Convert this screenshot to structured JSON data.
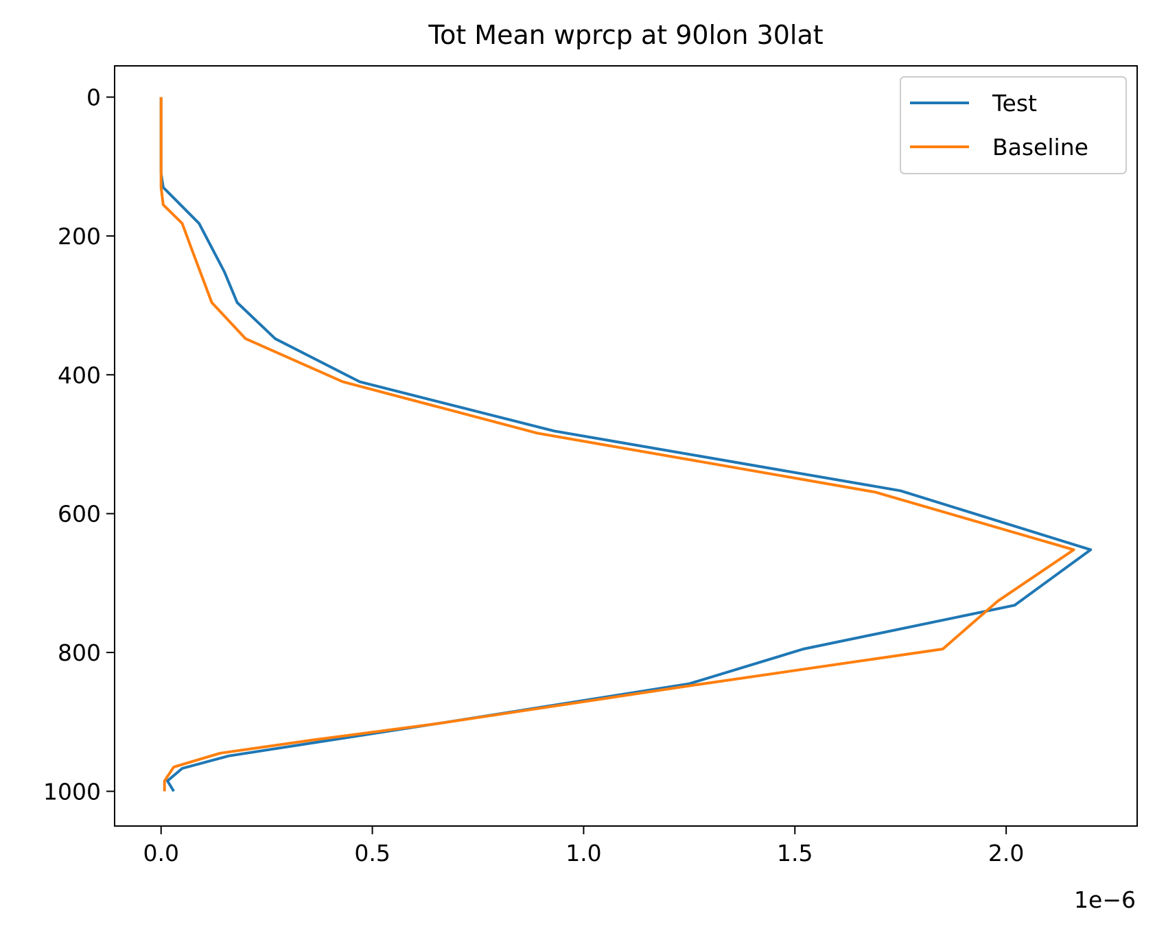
{
  "chart_data": {
    "type": "line",
    "title": "Tot Mean wprcp at 90lon 30lat",
    "xlabel": "",
    "ylabel": "",
    "x_offset_text": "1e−6",
    "xlim": [
      -0.11,
      2.31
    ],
    "ylim": [
      1050,
      -45
    ],
    "y_inverted": true,
    "grid": false,
    "legend_position": "top-right",
    "xticks": [
      0.0,
      0.5,
      1.0,
      1.5,
      2.0
    ],
    "xtick_labels": [
      "0.0",
      "0.5",
      "1.0",
      "1.5",
      "2.0"
    ],
    "yticks": [
      0,
      200,
      400,
      600,
      800,
      1000
    ],
    "ytick_labels": [
      "0",
      "200",
      "400",
      "600",
      "800",
      "1000"
    ],
    "series": [
      {
        "name": "Test",
        "color": "#1f77b4",
        "points": [
          [
            0.0,
            0
          ],
          [
            0.0,
            50
          ],
          [
            0.0,
            100
          ],
          [
            0.0,
            110
          ],
          [
            0.005,
            130
          ],
          [
            0.09,
            182
          ],
          [
            0.15,
            252
          ],
          [
            0.18,
            296
          ],
          [
            0.27,
            348
          ],
          [
            0.47,
            410
          ],
          [
            0.93,
            481
          ],
          [
            1.75,
            567
          ],
          [
            2.2,
            652
          ],
          [
            2.02,
            732
          ],
          [
            1.52,
            795
          ],
          [
            1.25,
            845
          ],
          [
            0.68,
            900
          ],
          [
            0.16,
            949
          ],
          [
            0.05,
            967
          ],
          [
            0.015,
            985
          ],
          [
            0.03,
            1000
          ]
        ]
      },
      {
        "name": "Baseline",
        "color": "#ff7f0e",
        "points": [
          [
            0.0,
            0
          ],
          [
            0.0,
            50
          ],
          [
            0.0,
            100
          ],
          [
            0.0,
            130
          ],
          [
            0.005,
            155
          ],
          [
            0.05,
            182
          ],
          [
            0.07,
            215
          ],
          [
            0.12,
            296
          ],
          [
            0.2,
            348
          ],
          [
            0.43,
            410
          ],
          [
            0.89,
            484
          ],
          [
            1.69,
            569
          ],
          [
            2.16,
            652
          ],
          [
            1.98,
            726
          ],
          [
            1.85,
            795
          ],
          [
            1.25,
            848
          ],
          [
            0.66,
            902
          ],
          [
            0.36,
            926
          ],
          [
            0.14,
            945
          ],
          [
            0.03,
            965
          ],
          [
            0.008,
            985
          ],
          [
            0.008,
            1000
          ]
        ]
      }
    ]
  }
}
